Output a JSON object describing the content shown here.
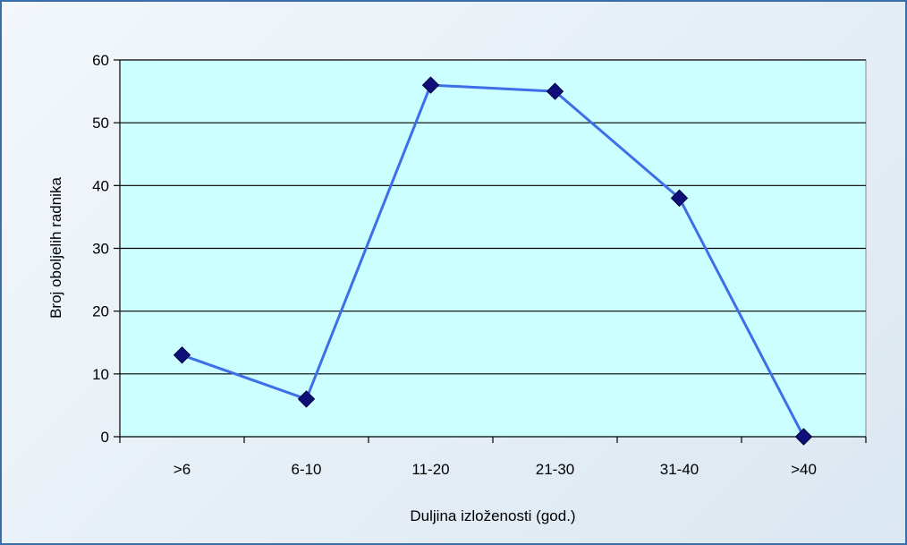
{
  "chart_data": {
    "type": "line",
    "title": "",
    "xlabel": "Duljina izloženosti (god.)",
    "ylabel": "Broj oboljelih radnika",
    "categories": [
      ">6",
      "6-10",
      "11-20",
      "21-30",
      "31-40",
      ">40"
    ],
    "series": [
      {
        "values": [
          13,
          6,
          56,
          55,
          38,
          0
        ]
      }
    ],
    "ylim": [
      0,
      60
    ],
    "yticks": [
      "0",
      "10",
      "20",
      "30",
      "40",
      "50",
      "60"
    ],
    "grid": "horizontal",
    "legend": "none",
    "colors": {
      "plot_background": "#ccffff",
      "line": "#3f6fe8",
      "marker": "#0f0f7a",
      "gridline": "#000000"
    }
  }
}
